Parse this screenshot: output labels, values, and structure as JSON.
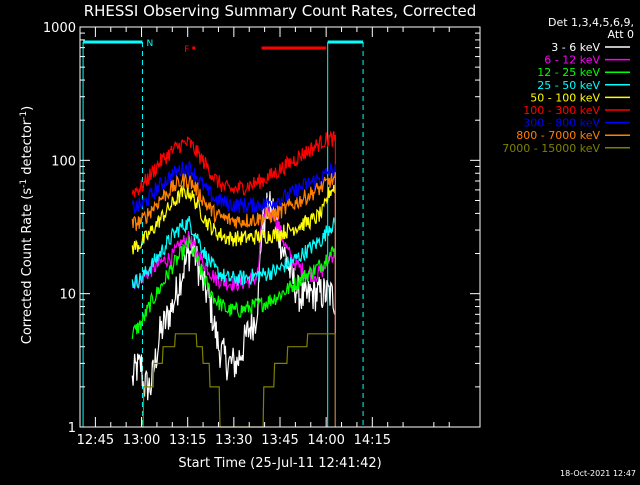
{
  "chart_data": {
    "type": "line",
    "title": "RHESSI Observing Summary Count Rates, Corrected",
    "xlabel": "Start Time (25-Jul-11 12:41:42)",
    "ylabel": "Corrected Count Rate (s",
    "ylabel_sup1": "-1",
    "ylabel_mid": " detector",
    "ylabel_sup2": "-1",
    "ylabel_end": ")",
    "y_scale": "log",
    "ylim": [
      1,
      1000
    ],
    "xlim_minutes": [
      40,
      170
    ],
    "x_tick_labels": [
      {
        "t": 45,
        "label": "12:45"
      },
      {
        "t": 60,
        "label": "13:00"
      },
      {
        "t": 75,
        "label": "13:15"
      },
      {
        "t": 90,
        "label": "13:30"
      },
      {
        "t": 105,
        "label": "13:45"
      },
      {
        "t": 120,
        "label": "14:00"
      },
      {
        "t": 135,
        "label": "14:15"
      }
    ],
    "y_tick_labels": [
      {
        "v": 1,
        "label": "1"
      },
      {
        "v": 10,
        "label": "10"
      },
      {
        "v": 100,
        "label": "100"
      },
      {
        "v": 1000,
        "label": "1000"
      }
    ],
    "legend_header": [
      "Det 1,3,4,5,6,9,",
      "Att 0"
    ],
    "legend_position": "right",
    "timestamp": "18-Oct-2021 12:47",
    "colors": {
      "background": "#000000",
      "axes": "#ffffff",
      "flags": "#00ffff",
      "flare": "#ff0000",
      "night": "#00ffff"
    },
    "flags": [
      {
        "label": "N",
        "segments": [
          [
            41,
            60.3
          ],
          [
            120.5,
            132
          ]
        ],
        "color": "#00ffff",
        "dashed_vertical_at": [
          60.3,
          132
        ],
        "solid_vertical_at": [
          120.5
        ]
      },
      {
        "label": "F",
        "segments": [
          [
            76.5,
            77.5
          ],
          [
            99,
            120
          ]
        ],
        "color": "#ff0000"
      }
    ],
    "series": [
      {
        "name": "3 - 6 keV",
        "color": "#ffffff",
        "points": [
          [
            57,
            2.2
          ],
          [
            58,
            2.7
          ],
          [
            60,
            2.9
          ],
          [
            60.5,
            2.1
          ],
          [
            63,
            2
          ],
          [
            66,
            5
          ],
          [
            70,
            8
          ],
          [
            73,
            14
          ],
          [
            75.5,
            20
          ],
          [
            77,
            22
          ],
          [
            79,
            14
          ],
          [
            82,
            9
          ],
          [
            85,
            4
          ],
          [
            88,
            3
          ],
          [
            91,
            3
          ],
          [
            93,
            4
          ],
          [
            95,
            5.5
          ],
          [
            97,
            6.5
          ],
          [
            98,
            10
          ],
          [
            99,
            30
          ],
          [
            101,
            44
          ],
          [
            103,
            42
          ],
          [
            105,
            26
          ],
          [
            107,
            18
          ],
          [
            109,
            13
          ],
          [
            111,
            10
          ],
          [
            113,
            9
          ],
          [
            115,
            10
          ],
          [
            117,
            10
          ],
          [
            119,
            10
          ],
          [
            121,
            10
          ],
          [
            123,
            9
          ]
        ]
      },
      {
        "name": "6 - 12 keV",
        "color": "#ff00ff",
        "points": [
          [
            57,
            12
          ],
          [
            60,
            13
          ],
          [
            63,
            15
          ],
          [
            66,
            17
          ],
          [
            70,
            19
          ],
          [
            73,
            24
          ],
          [
            75.5,
            26
          ],
          [
            78,
            20
          ],
          [
            81,
            16
          ],
          [
            84,
            13
          ],
          [
            88,
            12
          ],
          [
            92,
            12
          ],
          [
            95,
            12.5
          ],
          [
            97,
            13
          ],
          [
            98,
            15
          ],
          [
            99,
            33
          ],
          [
            101,
            42
          ],
          [
            103,
            40
          ],
          [
            105,
            30
          ],
          [
            107,
            22
          ],
          [
            109,
            18
          ],
          [
            111,
            16
          ],
          [
            114,
            14
          ],
          [
            117,
            14
          ],
          [
            119,
            15
          ],
          [
            121,
            19
          ],
          [
            123,
            20
          ]
        ]
      },
      {
        "name": "12 - 25 keV",
        "color": "#00ff00",
        "points": [
          [
            57,
            5
          ],
          [
            60,
            6
          ],
          [
            63,
            8.5
          ],
          [
            66,
            11
          ],
          [
            70,
            16
          ],
          [
            73,
            20
          ],
          [
            75.5,
            24
          ],
          [
            78,
            18
          ],
          [
            81,
            12
          ],
          [
            84,
            9
          ],
          [
            88,
            7.5
          ],
          [
            92,
            7.5
          ],
          [
            96,
            8
          ],
          [
            100,
            8.5
          ],
          [
            104,
            9.5
          ],
          [
            108,
            11
          ],
          [
            112,
            13
          ],
          [
            116,
            15
          ],
          [
            119,
            17
          ],
          [
            121,
            20
          ],
          [
            123,
            21
          ]
        ]
      },
      {
        "name": "25 - 50 keV",
        "color": "#00ffff",
        "points": [
          [
            57,
            12
          ],
          [
            60,
            13
          ],
          [
            63,
            16
          ],
          [
            66,
            20
          ],
          [
            70,
            27
          ],
          [
            73,
            32
          ],
          [
            75.5,
            34
          ],
          [
            78,
            27
          ],
          [
            81,
            19
          ],
          [
            84,
            15
          ],
          [
            88,
            13
          ],
          [
            92,
            13
          ],
          [
            96,
            13.5
          ],
          [
            100,
            14
          ],
          [
            104,
            15
          ],
          [
            108,
            17
          ],
          [
            112,
            19.5
          ],
          [
            116,
            23
          ],
          [
            119,
            26
          ],
          [
            121,
            32
          ],
          [
            123,
            33
          ]
        ]
      },
      {
        "name": "50 - 100 keV",
        "color": "#ffff00",
        "points": [
          [
            57,
            22
          ],
          [
            60,
            24
          ],
          [
            63,
            29
          ],
          [
            66,
            36
          ],
          [
            70,
            47
          ],
          [
            73,
            56
          ],
          [
            75.5,
            58
          ],
          [
            78,
            47
          ],
          [
            81,
            35
          ],
          [
            84,
            29
          ],
          [
            88,
            26
          ],
          [
            92,
            26
          ],
          [
            96,
            26.5
          ],
          [
            100,
            27
          ],
          [
            104,
            28
          ],
          [
            108,
            30
          ],
          [
            112,
            33
          ],
          [
            116,
            36
          ],
          [
            119,
            41
          ],
          [
            121,
            58
          ],
          [
            123,
            64
          ]
        ]
      },
      {
        "name": "100 - 300 keV",
        "color": "#ff0000",
        "points": [
          [
            57,
            58
          ],
          [
            60,
            63
          ],
          [
            63,
            78
          ],
          [
            66,
            97
          ],
          [
            70,
            118
          ],
          [
            73,
            132
          ],
          [
            75.5,
            135
          ],
          [
            78,
            115
          ],
          [
            81,
            92
          ],
          [
            84,
            72
          ],
          [
            87,
            62
          ],
          [
            90,
            60
          ],
          [
            93,
            63
          ],
          [
            96,
            66
          ],
          [
            100,
            72
          ],
          [
            104,
            82
          ],
          [
            108,
            95
          ],
          [
            112,
            110
          ],
          [
            116,
            125
          ],
          [
            119,
            140
          ],
          [
            121,
            145
          ],
          [
            123,
            144
          ]
        ]
      },
      {
        "name": "300 - 800 keV",
        "color": "#0000ff",
        "points": [
          [
            57,
            44
          ],
          [
            60,
            46
          ],
          [
            63,
            54
          ],
          [
            66,
            65
          ],
          [
            70,
            78
          ],
          [
            73,
            86
          ],
          [
            75.5,
            88
          ],
          [
            78,
            75
          ],
          [
            81,
            60
          ],
          [
            84,
            51
          ],
          [
            88,
            47
          ],
          [
            92,
            46
          ],
          [
            96,
            46
          ],
          [
            100,
            47
          ],
          [
            104,
            50
          ],
          [
            108,
            55
          ],
          [
            112,
            63
          ],
          [
            116,
            70
          ],
          [
            119,
            75
          ],
          [
            121,
            83
          ],
          [
            123,
            84
          ]
        ]
      },
      {
        "name": "800 - 7000 keV",
        "color": "#ff8000",
        "points": [
          [
            57,
            33
          ],
          [
            60,
            35
          ],
          [
            63,
            42
          ],
          [
            66,
            51
          ],
          [
            70,
            62
          ],
          [
            73,
            70
          ],
          [
            75.5,
            71
          ],
          [
            78,
            60
          ],
          [
            81,
            47
          ],
          [
            84,
            39
          ],
          [
            88,
            36
          ],
          [
            92,
            35
          ],
          [
            96,
            36
          ],
          [
            100,
            37
          ],
          [
            104,
            40
          ],
          [
            108,
            45
          ],
          [
            112,
            51
          ],
          [
            116,
            58
          ],
          [
            119,
            64
          ],
          [
            121,
            70
          ],
          [
            123,
            72
          ]
        ]
      },
      {
        "name": "7000 - 15000 keV",
        "color": "#808000",
        "points": [
          [
            60,
            1
          ],
          [
            61,
            1.8
          ],
          [
            63,
            2.2
          ],
          [
            65,
            3
          ],
          [
            67,
            3.5
          ],
          [
            69,
            4
          ],
          [
            71,
            4.5
          ],
          [
            73,
            5
          ],
          [
            75,
            5
          ],
          [
            77,
            5
          ],
          [
            79,
            4
          ],
          [
            81,
            3
          ],
          [
            83,
            2.2
          ],
          [
            85,
            1.6
          ],
          [
            87,
            1.1
          ],
          [
            89,
            1
          ],
          [
            96,
            1
          ],
          [
            98,
            1.2
          ],
          [
            100,
            1.6
          ],
          [
            102,
            2.2
          ],
          [
            104,
            2.8
          ],
          [
            106,
            3.3
          ],
          [
            108,
            3.6
          ],
          [
            110,
            4
          ],
          [
            112,
            4.4
          ],
          [
            114,
            4.5
          ],
          [
            116,
            4.5
          ],
          [
            118,
            4.6
          ],
          [
            120,
            4.7
          ],
          [
            122,
            4.8
          ],
          [
            123,
            4.8
          ]
        ]
      }
    ]
  }
}
